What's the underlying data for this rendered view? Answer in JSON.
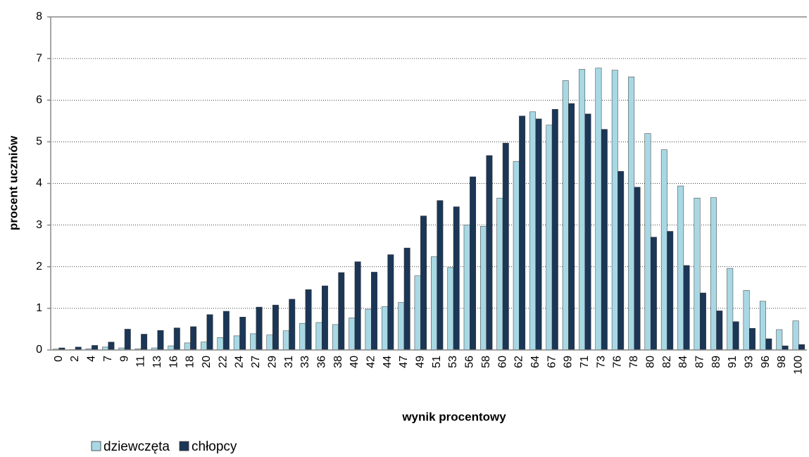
{
  "chart_data": {
    "type": "bar",
    "y_label": "procent uczniów",
    "x_label": "wynik procentowy",
    "categories": [
      "0",
      "2",
      "4",
      "7",
      "9",
      "11",
      "13",
      "16",
      "18",
      "20",
      "22",
      "24",
      "27",
      "29",
      "31",
      "33",
      "36",
      "38",
      "40",
      "42",
      "44",
      "47",
      "49",
      "51",
      "53",
      "56",
      "58",
      "60",
      "62",
      "64",
      "67",
      "69",
      "71",
      "73",
      "76",
      "78",
      "80",
      "82",
      "84",
      "87",
      "89",
      "91",
      "93",
      "96",
      "98",
      "100"
    ],
    "series": [
      {
        "name": "dziewczęta",
        "color": "#a8d8e4",
        "values": [
          0.02,
          0.01,
          0.03,
          0.07,
          0.05,
          0.03,
          0.05,
          0.1,
          0.17,
          0.19,
          0.3,
          0.34,
          0.39,
          0.36,
          0.46,
          0.64,
          0.66,
          0.61,
          0.77,
          0.98,
          1.04,
          1.14,
          1.78,
          2.24,
          1.98,
          3.0,
          2.97,
          3.65,
          4.53,
          5.72,
          5.4,
          6.47,
          6.74,
          6.77,
          6.72,
          6.56,
          5.2,
          4.81,
          3.94,
          3.65,
          3.66,
          1.96,
          1.43,
          1.17,
          0.49,
          0.7
        ]
      },
      {
        "name": "chłopcy",
        "color": "#1b3656",
        "values": [
          0.05,
          0.07,
          0.11,
          0.19,
          0.5,
          0.38,
          0.47,
          0.53,
          0.56,
          0.85,
          0.93,
          0.79,
          1.03,
          1.08,
          1.22,
          1.45,
          1.54,
          1.86,
          2.12,
          1.87,
          2.29,
          2.45,
          3.22,
          3.59,
          3.44,
          4.16,
          4.67,
          4.97,
          5.62,
          5.55,
          5.78,
          5.92,
          5.67,
          5.3,
          4.29,
          3.91,
          2.71,
          2.85,
          2.03,
          1.37,
          0.94,
          0.68,
          0.52,
          0.27,
          0.1,
          0.13
        ]
      }
    ],
    "ylim": [
      0,
      8
    ],
    "yticks": [
      0,
      1,
      2,
      3,
      4,
      5,
      6,
      7,
      8
    ],
    "grid": true,
    "legend": "bottom-left"
  }
}
